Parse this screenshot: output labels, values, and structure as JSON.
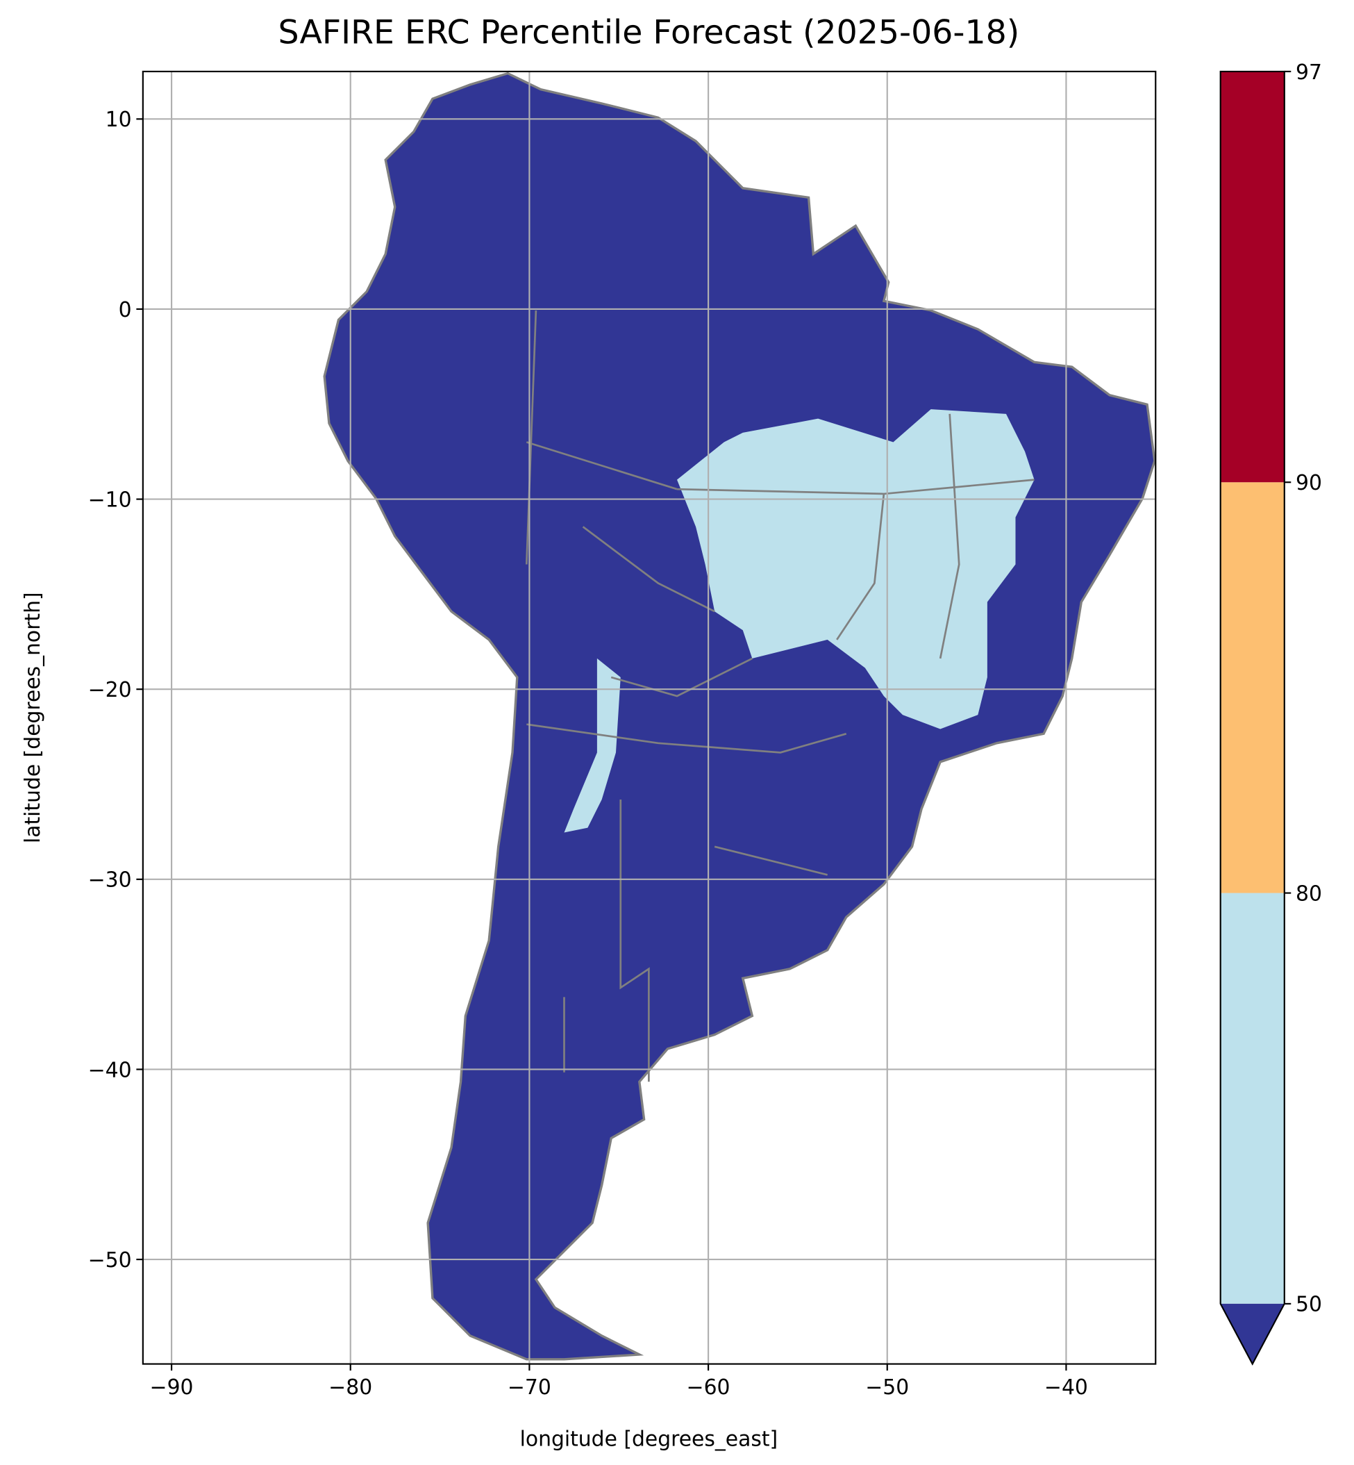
{
  "chart_data": {
    "type": "map",
    "title": "SAFIRE ERC Percentile Forecast (2025-06-18)",
    "x_label": "longitude [degrees_east]",
    "y_label": "latitude [degrees_north]",
    "xlim": [
      -91.6,
      -35.0
    ],
    "ylim": [
      -55.5,
      12.5
    ],
    "xticks": [
      -90,
      -80,
      -70,
      -60,
      -50,
      -40
    ],
    "yticks": [
      10,
      0,
      -10,
      -20,
      -30,
      -40,
      -50
    ],
    "grid": true,
    "colorbar": {
      "ticks": [
        50,
        80,
        90,
        97
      ],
      "colors": [
        "#bde1ec",
        "#fdbf71",
        "#a50026"
      ],
      "under_color": "#313695"
    }
  }
}
